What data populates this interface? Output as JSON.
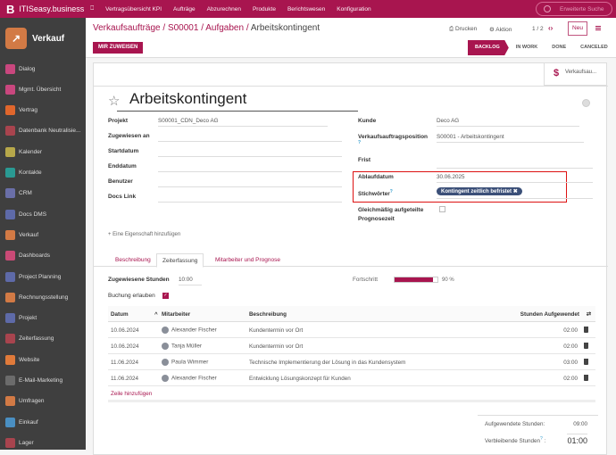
{
  "topbar": {
    "logo": "B",
    "app_name": "ITISeasy.business",
    "menu": [
      "Vertragsübersicht KPI",
      "Aufträge",
      "Abzurechnen",
      "Produkte",
      "Berichtswesen",
      "Konfiguration"
    ],
    "search_placeholder": "Erweiterte Suche"
  },
  "sidebar": {
    "app_title": "Verkauf",
    "items": [
      {
        "label": "Dialog",
        "color": "#c9477e"
      },
      {
        "label": "Mgmt. Übersicht",
        "color": "#c9477e"
      },
      {
        "label": "Vertrag",
        "color": "#e0662c"
      },
      {
        "label": "Datenbank Neutralisie...",
        "color": "#a8444e"
      },
      {
        "label": "Kalender",
        "color": "#b7a84a"
      },
      {
        "label": "Kontakte",
        "color": "#2a9a93"
      },
      {
        "label": "CRM",
        "color": "#6a6fa8"
      },
      {
        "label": "Docs DMS",
        "color": "#5e6aa8"
      },
      {
        "label": "Verkauf",
        "color": "#d27a45"
      },
      {
        "label": "Dashboards",
        "color": "#c94a76"
      },
      {
        "label": "Project Planning",
        "color": "#5e6aa8"
      },
      {
        "label": "Rechnungsstellung",
        "color": "#d27a45"
      },
      {
        "label": "Projekt",
        "color": "#5e6aa8"
      },
      {
        "label": "Zeiterfassung",
        "color": "#a8444e"
      },
      {
        "label": "Website",
        "color": "#e07a3a"
      },
      {
        "label": "E-Mail-Marketing",
        "color": "#6b6b6b"
      },
      {
        "label": "Umfragen",
        "color": "#d27a45"
      },
      {
        "label": "Einkauf",
        "color": "#4a8fc2"
      },
      {
        "label": "Lager",
        "color": "#a8444e"
      }
    ]
  },
  "breadcrumb": [
    "Verkaufsaufträge",
    "S00001",
    "Aufgaben",
    "Arbeitskontingent"
  ],
  "toolbar": {
    "assign": "MIR ZUWEISEN",
    "print": "Drucken",
    "action": "Aktion",
    "pager": "1 / 2",
    "new": "Neu"
  },
  "stages": [
    "BACKLOG",
    "IN WORK",
    "DONE",
    "CANCELED"
  ],
  "smart_button": "Verkaufsau...",
  "form": {
    "title": "Arbeitskontingent",
    "left": [
      {
        "label": "Projekt",
        "value": "S00001_CDN_Deco AG"
      },
      {
        "label": "Zugewiesen an",
        "value": ""
      },
      {
        "label": "Startdatum",
        "value": ""
      },
      {
        "label": "Enddatum",
        "value": ""
      },
      {
        "label": "Benutzer",
        "value": ""
      },
      {
        "label": "Docs Link",
        "value": ""
      }
    ],
    "kunde_label": "Kunde",
    "kunde": "Deco AG",
    "position_label": "Verkaufsauftragsposition",
    "position": "S00001 - Arbeitskontingent",
    "frist_label": "Frist",
    "ablauf_label": "Ablaufdatum",
    "ablauf": "30.06.2025",
    "tags_label": "Stichwörter",
    "tag": "Kontingent zeitlich befristet",
    "prognose_label": "Gleichmäßig aufgeteilte Prognosezeit",
    "add_property": "Eine Eigenschaft hinzufügen"
  },
  "tabs": [
    "Beschreibung",
    "Zeiterfassung",
    "Mitarbeiter und Prognose"
  ],
  "timesheet": {
    "assigned_label": "Zugewiesene Stunden",
    "assigned": "10:00",
    "progress_label": "Fortschritt",
    "progress": 90,
    "progress_text": "90 %",
    "booking_label": "Buchung erlauben",
    "booking": true,
    "columns": [
      "Datum",
      "Mitarbeiter",
      "Beschreibung",
      "Stunden Aufgewendet"
    ],
    "rows": [
      {
        "date": "10.06.2024",
        "employee": "Alexander Fischer",
        "desc": "Kundentermin vor Ort",
        "hours": "02:00"
      },
      {
        "date": "10.06.2024",
        "employee": "Tanja Müller",
        "desc": "Kundentermin vor Ort",
        "hours": "02:00"
      },
      {
        "date": "11.06.2024",
        "employee": "Paula Wimmer",
        "desc": "Technische Implementierung der Lösung in das Kundensystem",
        "hours": "03:00"
      },
      {
        "date": "11.06.2024",
        "employee": "Alexander Fischer",
        "desc": "Entwicklung Lösungskonzept für Kunden",
        "hours": "02:00"
      }
    ],
    "add_line": "Zeile hinzufügen",
    "spent_label": "Aufgewendete Stunden:",
    "spent": "09:00",
    "remaining_label": "Verbleibende Stunden",
    "remaining": "01:00"
  }
}
